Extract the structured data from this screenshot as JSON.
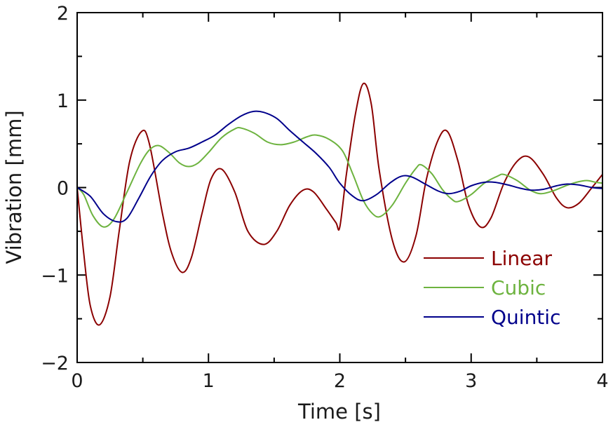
{
  "chart_data": {
    "type": "line",
    "title": "",
    "xlabel": "Time [s]",
    "ylabel": "Vibration [mm]",
    "xlim": [
      0,
      4
    ],
    "ylim": [
      -2,
      2
    ],
    "x_ticks": [
      0,
      1,
      2,
      3,
      4
    ],
    "x_tick_labels": [
      "0",
      "1",
      "2",
      "3",
      "4"
    ],
    "y_ticks": [
      -2,
      -1,
      0,
      1,
      2
    ],
    "y_tick_labels": [
      "−2",
      "−1",
      "0",
      "1",
      "2"
    ],
    "grid": false,
    "legend_position": "lower-right",
    "series": [
      {
        "name": "Linear",
        "color": "#8b0000",
        "points": [
          [
            0,
            0
          ],
          [
            0.05,
            -0.75
          ],
          [
            0.1,
            -1.35
          ],
          [
            0.17,
            -1.57
          ],
          [
            0.25,
            -1.25
          ],
          [
            0.32,
            -0.5
          ],
          [
            0.4,
            0.3
          ],
          [
            0.49,
            0.64
          ],
          [
            0.55,
            0.5
          ],
          [
            0.65,
            -0.3
          ],
          [
            0.72,
            -0.75
          ],
          [
            0.8,
            -0.97
          ],
          [
            0.87,
            -0.8
          ],
          [
            0.95,
            -0.3
          ],
          [
            1.02,
            0.1
          ],
          [
            1.1,
            0.21
          ],
          [
            1.2,
            -0.05
          ],
          [
            1.3,
            -0.5
          ],
          [
            1.42,
            -0.65
          ],
          [
            1.52,
            -0.5
          ],
          [
            1.62,
            -0.2
          ],
          [
            1.72,
            -0.03
          ],
          [
            1.8,
            -0.05
          ],
          [
            1.9,
            -0.25
          ],
          [
            1.97,
            -0.4
          ],
          [
            2.0,
            -0.45
          ],
          [
            2.05,
            0.15
          ],
          [
            2.12,
            0.85
          ],
          [
            2.18,
            1.19
          ],
          [
            2.24,
            0.95
          ],
          [
            2.3,
            0.2
          ],
          [
            2.4,
            -0.6
          ],
          [
            2.49,
            -0.85
          ],
          [
            2.58,
            -0.55
          ],
          [
            2.66,
            0.1
          ],
          [
            2.75,
            0.55
          ],
          [
            2.82,
            0.64
          ],
          [
            2.9,
            0.3
          ],
          [
            2.98,
            -0.2
          ],
          [
            3.07,
            -0.45
          ],
          [
            3.15,
            -0.35
          ],
          [
            3.25,
            0.05
          ],
          [
            3.35,
            0.3
          ],
          [
            3.44,
            0.35
          ],
          [
            3.55,
            0.15
          ],
          [
            3.65,
            -0.12
          ],
          [
            3.73,
            -0.23
          ],
          [
            3.82,
            -0.18
          ],
          [
            3.92,
            0.0
          ],
          [
            4.0,
            0.15
          ]
        ]
      },
      {
        "name": "Cubic",
        "color": "#6db33f",
        "points": [
          [
            0,
            0
          ],
          [
            0.05,
            -0.08
          ],
          [
            0.12,
            -0.32
          ],
          [
            0.2,
            -0.45
          ],
          [
            0.28,
            -0.36
          ],
          [
            0.38,
            -0.05
          ],
          [
            0.48,
            0.27
          ],
          [
            0.55,
            0.43
          ],
          [
            0.62,
            0.48
          ],
          [
            0.7,
            0.4
          ],
          [
            0.78,
            0.28
          ],
          [
            0.85,
            0.24
          ],
          [
            0.92,
            0.28
          ],
          [
            1.0,
            0.4
          ],
          [
            1.1,
            0.57
          ],
          [
            1.2,
            0.67
          ],
          [
            1.25,
            0.68
          ],
          [
            1.35,
            0.62
          ],
          [
            1.45,
            0.52
          ],
          [
            1.55,
            0.49
          ],
          [
            1.65,
            0.52
          ],
          [
            1.75,
            0.58
          ],
          [
            1.82,
            0.6
          ],
          [
            1.92,
            0.55
          ],
          [
            2.02,
            0.42
          ],
          [
            2.1,
            0.15
          ],
          [
            2.18,
            -0.15
          ],
          [
            2.25,
            -0.3
          ],
          [
            2.31,
            -0.33
          ],
          [
            2.4,
            -0.2
          ],
          [
            2.5,
            0.05
          ],
          [
            2.58,
            0.22
          ],
          [
            2.62,
            0.26
          ],
          [
            2.7,
            0.16
          ],
          [
            2.78,
            -0.02
          ],
          [
            2.85,
            -0.13
          ],
          [
            2.9,
            -0.16
          ],
          [
            3.0,
            -0.08
          ],
          [
            3.1,
            0.05
          ],
          [
            3.2,
            0.13
          ],
          [
            3.25,
            0.15
          ],
          [
            3.35,
            0.08
          ],
          [
            3.45,
            -0.03
          ],
          [
            3.53,
            -0.07
          ],
          [
            3.62,
            -0.04
          ],
          [
            3.72,
            0.02
          ],
          [
            3.8,
            0.06
          ],
          [
            3.88,
            0.08
          ],
          [
            3.95,
            0.06
          ],
          [
            4.0,
            0.05
          ]
        ]
      },
      {
        "name": "Quintic",
        "color": "#00008b",
        "points": [
          [
            0,
            0
          ],
          [
            0.1,
            -0.1
          ],
          [
            0.2,
            -0.3
          ],
          [
            0.3,
            -0.39
          ],
          [
            0.38,
            -0.35
          ],
          [
            0.47,
            -0.12
          ],
          [
            0.56,
            0.13
          ],
          [
            0.65,
            0.31
          ],
          [
            0.75,
            0.41
          ],
          [
            0.85,
            0.45
          ],
          [
            0.95,
            0.52
          ],
          [
            1.05,
            0.6
          ],
          [
            1.15,
            0.72
          ],
          [
            1.25,
            0.82
          ],
          [
            1.34,
            0.87
          ],
          [
            1.42,
            0.86
          ],
          [
            1.52,
            0.79
          ],
          [
            1.62,
            0.65
          ],
          [
            1.72,
            0.52
          ],
          [
            1.82,
            0.39
          ],
          [
            1.92,
            0.23
          ],
          [
            2.0,
            0.05
          ],
          [
            2.1,
            -0.1
          ],
          [
            2.18,
            -0.15
          ],
          [
            2.28,
            -0.08
          ],
          [
            2.38,
            0.05
          ],
          [
            2.47,
            0.13
          ],
          [
            2.55,
            0.12
          ],
          [
            2.65,
            0.04
          ],
          [
            2.75,
            -0.04
          ],
          [
            2.83,
            -0.07
          ],
          [
            2.92,
            -0.04
          ],
          [
            3.0,
            0.02
          ],
          [
            3.1,
            0.06
          ],
          [
            3.18,
            0.06
          ],
          [
            3.28,
            0.03
          ],
          [
            3.38,
            -0.01
          ],
          [
            3.46,
            -0.03
          ],
          [
            3.55,
            -0.02
          ],
          [
            3.65,
            0.02
          ],
          [
            3.73,
            0.04
          ],
          [
            3.82,
            0.03
          ],
          [
            3.92,
            0.0
          ],
          [
            4.0,
            -0.01
          ]
        ]
      }
    ]
  }
}
